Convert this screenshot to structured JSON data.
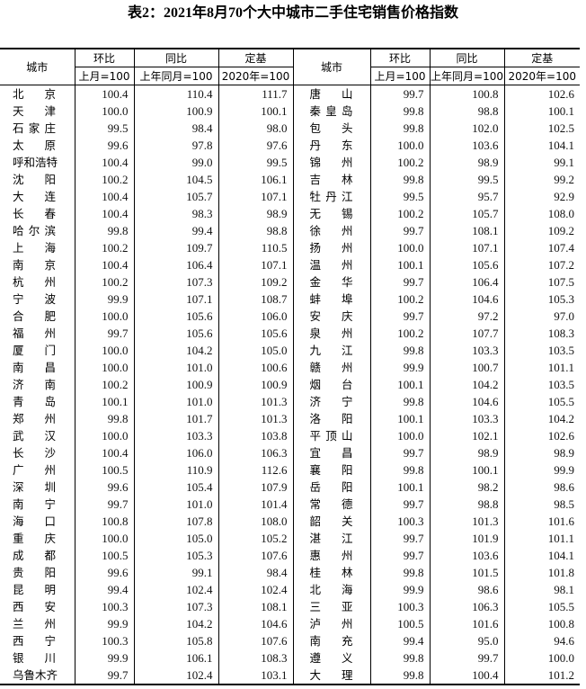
{
  "title": "表2：2021年8月70个大中城市二手住宅销售价格指数",
  "headers": {
    "city": "城市",
    "mom": "环比",
    "yoy": "同比",
    "base": "定基",
    "mom_sub": "上月=100",
    "yoy_sub": "上年同月=100",
    "base_sub": "2020年=100"
  },
  "left_rows": [
    [
      "北京",
      "100.4",
      "110.4",
      "111.7"
    ],
    [
      "天津",
      "100.0",
      "100.9",
      "100.1"
    ],
    [
      "石家庄",
      "99.5",
      "98.4",
      "98.0"
    ],
    [
      "太原",
      "99.6",
      "97.8",
      "97.6"
    ],
    [
      "呼和浩特",
      "100.4",
      "99.0",
      "99.5"
    ],
    [
      "沈阳",
      "100.2",
      "104.5",
      "106.1"
    ],
    [
      "大连",
      "100.4",
      "105.7",
      "107.1"
    ],
    [
      "长春",
      "100.4",
      "98.3",
      "98.9"
    ],
    [
      "哈尔滨",
      "99.8",
      "99.4",
      "98.8"
    ],
    [
      "上海",
      "100.2",
      "109.7",
      "110.5"
    ],
    [
      "南京",
      "100.4",
      "106.4",
      "107.1"
    ],
    [
      "杭州",
      "100.2",
      "107.3",
      "109.2"
    ],
    [
      "宁波",
      "99.9",
      "107.1",
      "108.7"
    ],
    [
      "合肥",
      "100.0",
      "105.6",
      "106.0"
    ],
    [
      "福州",
      "99.7",
      "105.6",
      "105.6"
    ],
    [
      "厦门",
      "100.0",
      "104.2",
      "105.0"
    ],
    [
      "南昌",
      "100.0",
      "101.0",
      "100.6"
    ],
    [
      "济南",
      "100.2",
      "100.9",
      "100.9"
    ],
    [
      "青岛",
      "100.1",
      "101.0",
      "101.3"
    ],
    [
      "郑州",
      "99.8",
      "101.7",
      "101.3"
    ],
    [
      "武汉",
      "100.0",
      "103.3",
      "103.8"
    ],
    [
      "长沙",
      "100.4",
      "106.0",
      "106.3"
    ],
    [
      "广州",
      "100.5",
      "110.9",
      "112.6"
    ],
    [
      "深圳",
      "99.6",
      "105.4",
      "107.9"
    ],
    [
      "南宁",
      "99.7",
      "101.0",
      "101.4"
    ],
    [
      "海口",
      "100.8",
      "107.8",
      "108.0"
    ],
    [
      "重庆",
      "100.0",
      "105.0",
      "105.2"
    ],
    [
      "成都",
      "100.5",
      "105.3",
      "107.6"
    ],
    [
      "贵阳",
      "99.6",
      "99.1",
      "98.4"
    ],
    [
      "昆明",
      "99.4",
      "102.4",
      "102.4"
    ],
    [
      "西安",
      "100.3",
      "107.3",
      "108.1"
    ],
    [
      "兰州",
      "99.9",
      "104.2",
      "104.6"
    ],
    [
      "西宁",
      "100.3",
      "105.8",
      "107.6"
    ],
    [
      "银川",
      "99.9",
      "106.1",
      "108.3"
    ],
    [
      "乌鲁木齐",
      "99.7",
      "102.4",
      "103.1"
    ]
  ],
  "right_rows": [
    [
      "唐山",
      "99.7",
      "100.8",
      "102.6"
    ],
    [
      "秦皇岛",
      "99.8",
      "98.8",
      "100.1"
    ],
    [
      "包头",
      "99.8",
      "102.0",
      "102.5"
    ],
    [
      "丹东",
      "100.0",
      "103.6",
      "104.1"
    ],
    [
      "锦州",
      "100.2",
      "98.9",
      "99.1"
    ],
    [
      "吉林",
      "99.8",
      "99.5",
      "99.2"
    ],
    [
      "牡丹江",
      "99.5",
      "95.7",
      "92.9"
    ],
    [
      "无锡",
      "100.2",
      "105.7",
      "108.0"
    ],
    [
      "徐州",
      "99.7",
      "108.1",
      "109.2"
    ],
    [
      "扬州",
      "100.0",
      "107.1",
      "107.4"
    ],
    [
      "温州",
      "100.1",
      "105.6",
      "107.2"
    ],
    [
      "金华",
      "99.7",
      "106.4",
      "107.5"
    ],
    [
      "蚌埠",
      "100.2",
      "104.6",
      "105.3"
    ],
    [
      "安庆",
      "99.7",
      "97.2",
      "97.0"
    ],
    [
      "泉州",
      "100.2",
      "107.7",
      "108.3"
    ],
    [
      "九江",
      "99.8",
      "103.3",
      "103.5"
    ],
    [
      "赣州",
      "99.9",
      "100.7",
      "101.1"
    ],
    [
      "烟台",
      "100.1",
      "104.2",
      "103.5"
    ],
    [
      "济宁",
      "99.8",
      "104.6",
      "105.5"
    ],
    [
      "洛阳",
      "100.1",
      "103.3",
      "104.2"
    ],
    [
      "平顶山",
      "100.0",
      "102.1",
      "102.6"
    ],
    [
      "宜昌",
      "99.7",
      "98.9",
      "98.9"
    ],
    [
      "襄阳",
      "99.8",
      "100.1",
      "99.9"
    ],
    [
      "岳阳",
      "100.1",
      "98.2",
      "98.6"
    ],
    [
      "常德",
      "99.7",
      "98.8",
      "98.5"
    ],
    [
      "韶关",
      "100.3",
      "101.3",
      "101.6"
    ],
    [
      "湛江",
      "99.7",
      "101.9",
      "101.1"
    ],
    [
      "惠州",
      "99.7",
      "103.6",
      "104.1"
    ],
    [
      "桂林",
      "99.8",
      "101.5",
      "101.8"
    ],
    [
      "北海",
      "99.9",
      "98.6",
      "98.1"
    ],
    [
      "三亚",
      "100.3",
      "106.3",
      "105.5"
    ],
    [
      "泸州",
      "100.5",
      "101.6",
      "100.8"
    ],
    [
      "南充",
      "99.4",
      "95.0",
      "94.6"
    ],
    [
      "遵义",
      "99.8",
      "99.7",
      "100.0"
    ],
    [
      "大理",
      "99.8",
      "100.4",
      "101.2"
    ]
  ]
}
